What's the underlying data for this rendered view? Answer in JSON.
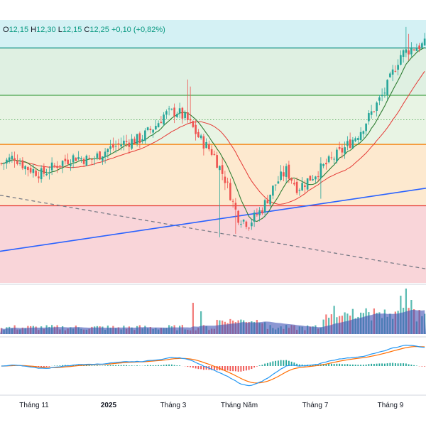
{
  "legend": {
    "o_label": "O",
    "o_value": "12,15",
    "h_label": "H",
    "h_value": "12,30",
    "l_label": "L",
    "l_value": "12,15",
    "c_label": "C",
    "c_value": "12,25",
    "change": "+0,10 (+0,82%)",
    "up_color": "#089981"
  },
  "chart_data": {
    "type": "candlestick",
    "x_ticks": [
      "Tháng 11",
      "2025",
      "Tháng 3",
      "Tháng Năm",
      "Tháng 7",
      "Tháng 9"
    ],
    "y_range": [
      7.5,
      15.0
    ],
    "colors": {
      "up": "#26a69a",
      "down": "#ef5350",
      "ma_fast": "#2e7d32",
      "ma_slow": "#e53935",
      "trendline": "#2962ff",
      "downtrend": "#787b86",
      "macd": "#2196f3",
      "signal": "#ff6d00",
      "volume": "#3f51b5"
    },
    "zones": [
      {
        "name": "zone-cyan",
        "from": 14.2,
        "to": 15.0,
        "color": "#d4f1f4"
      },
      {
        "name": "zone-green",
        "from": 12.85,
        "to": 14.2,
        "color": "#dff0e2"
      },
      {
        "name": "zone-light-green",
        "from": 11.45,
        "to": 12.85,
        "color": "#e8f4e4"
      },
      {
        "name": "zone-orange",
        "from": 9.7,
        "to": 11.45,
        "color": "#fde9cf"
      },
      {
        "name": "zone-red",
        "from": 7.5,
        "to": 9.7,
        "color": "#f9d5d9"
      }
    ],
    "levels": [
      {
        "name": "level-teal",
        "value": 14.2,
        "color": "#00897b",
        "dashed": false
      },
      {
        "name": "level-green",
        "value": 12.85,
        "color": "#43a047",
        "dashed": false
      },
      {
        "name": "level-dotted",
        "value": 12.15,
        "color": "#43a047",
        "dashed": true
      },
      {
        "name": "level-orange",
        "value": 11.45,
        "color": "#f57c00",
        "dashed": false
      },
      {
        "name": "level-red",
        "value": 9.7,
        "color": "#e53935",
        "dashed": false
      }
    ]
  }
}
